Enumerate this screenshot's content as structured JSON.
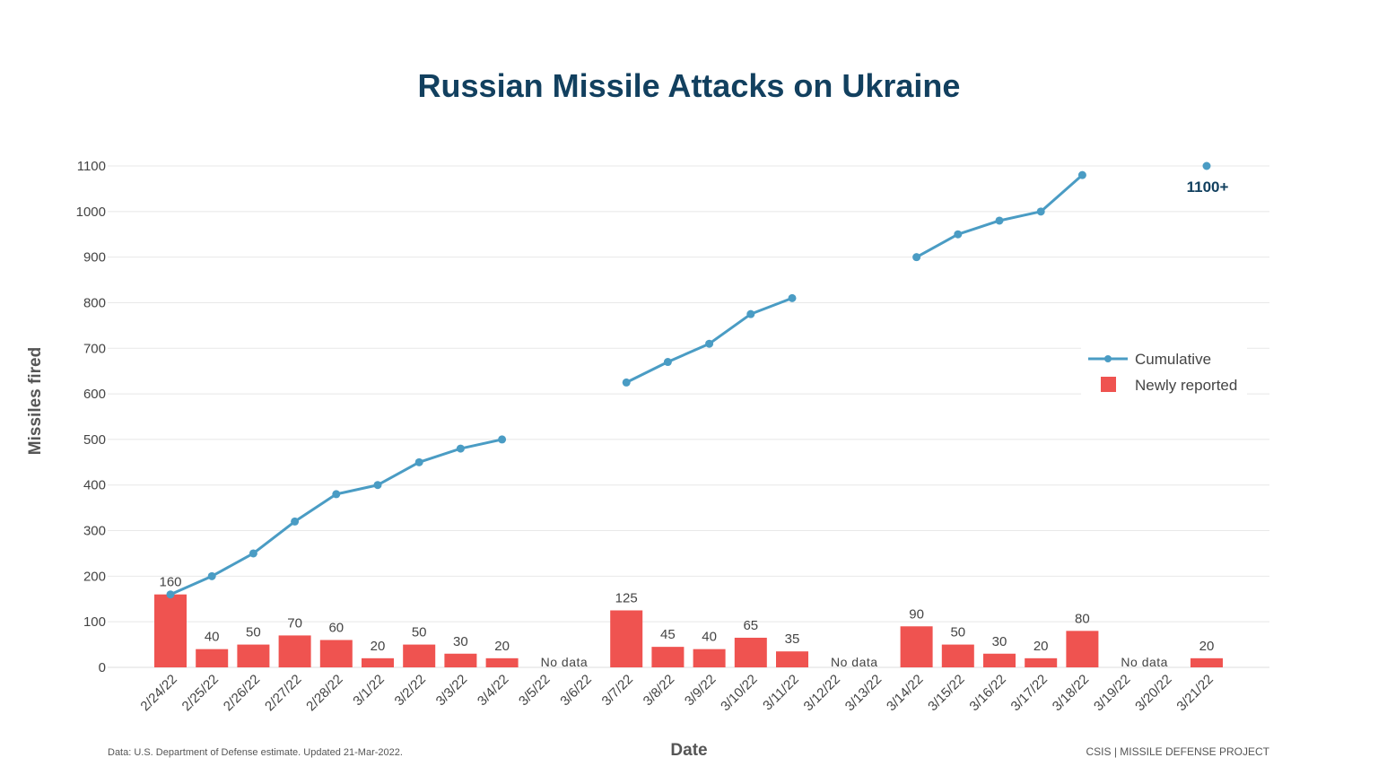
{
  "chart_data": {
    "type": "bar+line",
    "title": "Russian Missile Attacks on Ukraine",
    "xlabel": "Date",
    "ylabel": "Missiles fired",
    "ylim": [
      0,
      1100
    ],
    "yticks": [
      0,
      100,
      200,
      300,
      400,
      500,
      600,
      700,
      800,
      900,
      1000,
      1100
    ],
    "grid": true,
    "legend_position": "right",
    "categories": [
      "2/24/22",
      "2/25/22",
      "2/26/22",
      "2/27/22",
      "2/28/22",
      "3/1/22",
      "3/2/22",
      "3/3/22",
      "3/4/22",
      "3/5/22",
      "3/6/22",
      "3/7/22",
      "3/8/22",
      "3/9/22",
      "3/10/22",
      "3/11/22",
      "3/12/22",
      "3/13/22",
      "3/14/22",
      "3/15/22",
      "3/16/22",
      "3/17/22",
      "3/18/22",
      "3/19/22",
      "3/20/22",
      "3/21/22"
    ],
    "series": [
      {
        "name": "Cumulative",
        "type": "line",
        "color": "#4a9cc4",
        "values": [
          160,
          200,
          250,
          320,
          380,
          400,
          450,
          480,
          500,
          null,
          null,
          625,
          670,
          710,
          775,
          810,
          null,
          null,
          900,
          950,
          980,
          1000,
          1080,
          null,
          null,
          1100
        ]
      },
      {
        "name": "Newly reported",
        "type": "bar",
        "color": "#ef5350",
        "values": [
          160,
          40,
          50,
          70,
          60,
          20,
          50,
          30,
          20,
          null,
          null,
          125,
          45,
          40,
          65,
          35,
          null,
          null,
          90,
          50,
          30,
          20,
          80,
          null,
          null,
          20
        ]
      }
    ],
    "no_data_label": "No data",
    "no_data_periods": [
      [
        "3/5/22",
        "3/6/22"
      ],
      [
        "3/12/22",
        "3/13/22"
      ],
      [
        "3/19/22",
        "3/20/22"
      ]
    ],
    "annotation": "1100+"
  },
  "footer": {
    "source": "Data: U.S. Department of Defense estimate. Updated 21-Mar-2022.",
    "logo": "CSIS | MISSILE DEFENSE PROJECT"
  }
}
